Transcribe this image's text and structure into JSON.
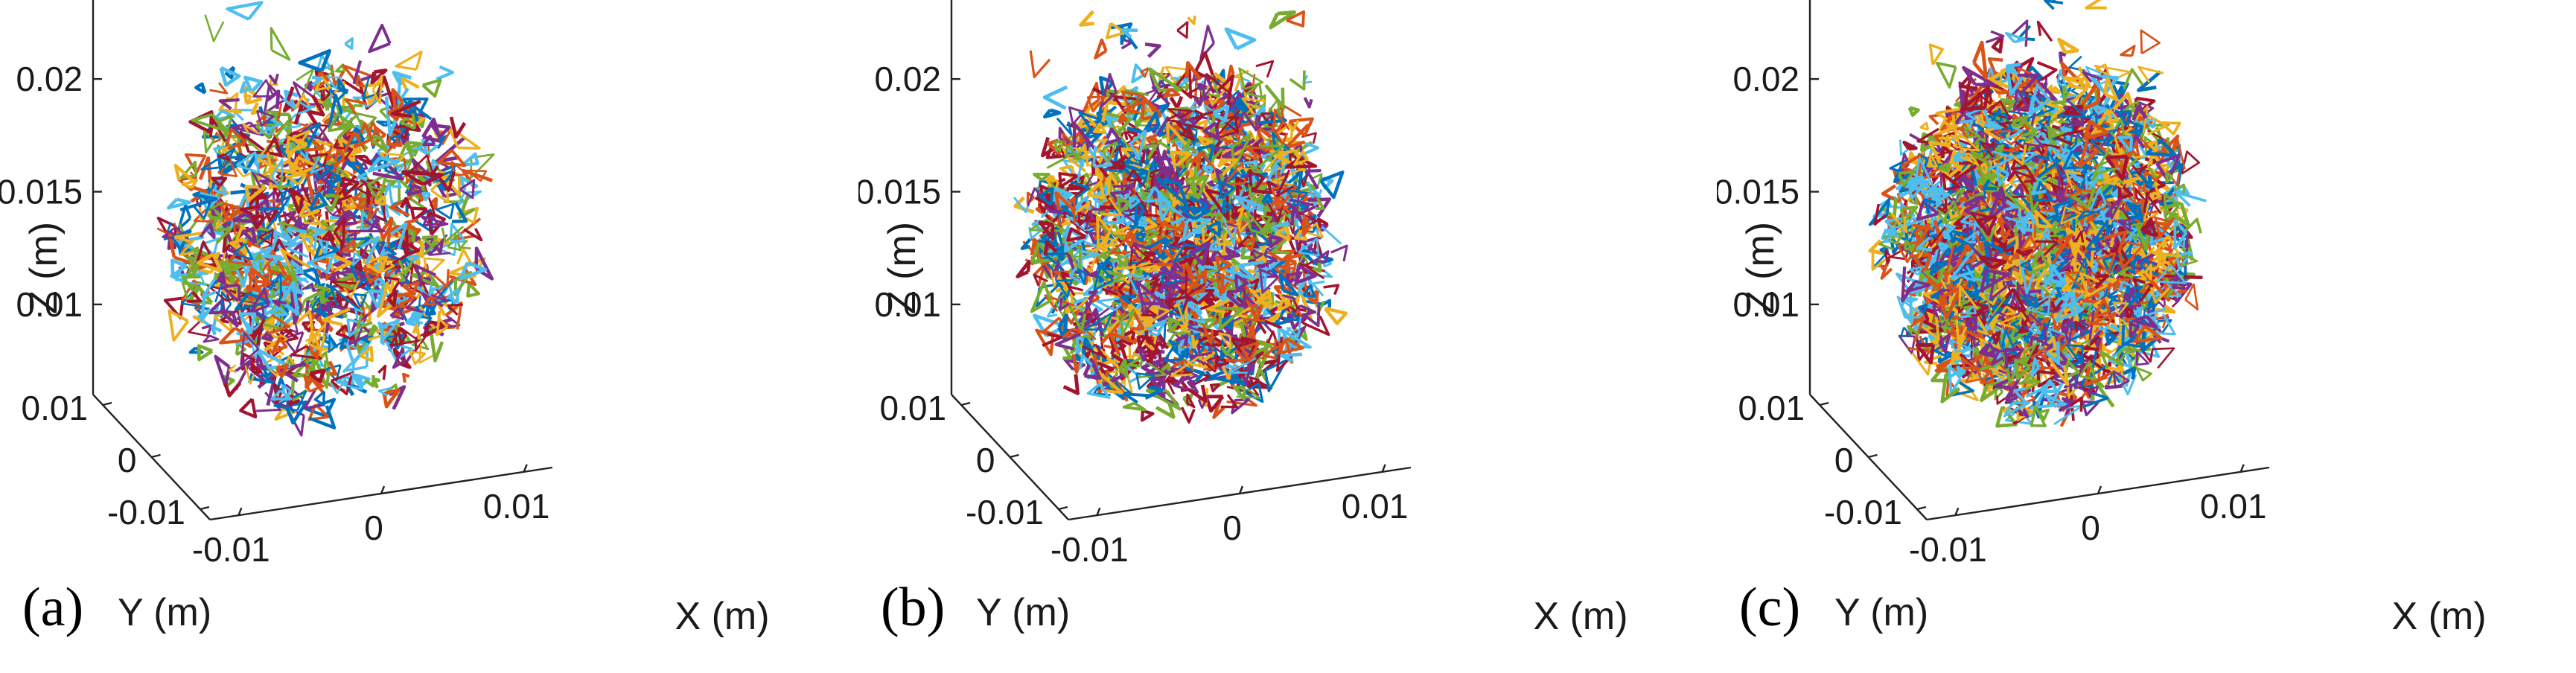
{
  "chart_data": [
    {
      "type": "scatter",
      "panel_label": "(a)",
      "xlabel": "X (m)",
      "ylabel": "Y (m)",
      "zlabel": "Z (m)",
      "x_ticks": [
        "-0.01",
        "0",
        "0.01"
      ],
      "y_ticks": [
        "-0.01",
        "0",
        "0.01"
      ],
      "z_ticks": [
        "0.01",
        "0.015",
        "0.02"
      ],
      "xlim": [
        -0.012,
        0.012
      ],
      "ylim": [
        -0.012,
        0.012
      ],
      "zlim": [
        0.006,
        0.024
      ],
      "density": 1,
      "series_colors": [
        "#0072BD",
        "#D95319",
        "#EDB120",
        "#7E2F8E",
        "#77AC30",
        "#4DBEEE",
        "#A2142F"
      ]
    },
    {
      "type": "scatter",
      "panel_label": "(b)",
      "xlabel": "X (m)",
      "ylabel": "Y (m)",
      "zlabel": "Z (m)",
      "x_ticks": [
        "-0.01",
        "0",
        "0.01"
      ],
      "y_ticks": [
        "-0.01",
        "0",
        "0.01"
      ],
      "z_ticks": [
        "0.01",
        "0.015",
        "0.02"
      ],
      "xlim": [
        -0.012,
        0.012
      ],
      "ylim": [
        -0.012,
        0.012
      ],
      "zlim": [
        0.006,
        0.024
      ],
      "density": 1.5,
      "series_colors": [
        "#0072BD",
        "#D95319",
        "#EDB120",
        "#7E2F8E",
        "#77AC30",
        "#4DBEEE",
        "#A2142F"
      ]
    },
    {
      "type": "scatter",
      "panel_label": "(c)",
      "xlabel": "X (m)",
      "ylabel": "Y (m)",
      "zlabel": "Z (m)",
      "x_ticks": [
        "-0.01",
        "0",
        "0.01"
      ],
      "y_ticks": [
        "-0.01",
        "0",
        "0.01"
      ],
      "z_ticks": [
        "0.01",
        "0.015",
        "0.02"
      ],
      "xlim": [
        -0.012,
        0.012
      ],
      "ylim": [
        -0.012,
        0.012
      ],
      "zlim": [
        0.006,
        0.024
      ],
      "density": 2,
      "series_colors": [
        "#0072BD",
        "#D95319",
        "#EDB120",
        "#7E2F8E",
        "#77AC30",
        "#4DBEEE",
        "#A2142F"
      ]
    }
  ]
}
